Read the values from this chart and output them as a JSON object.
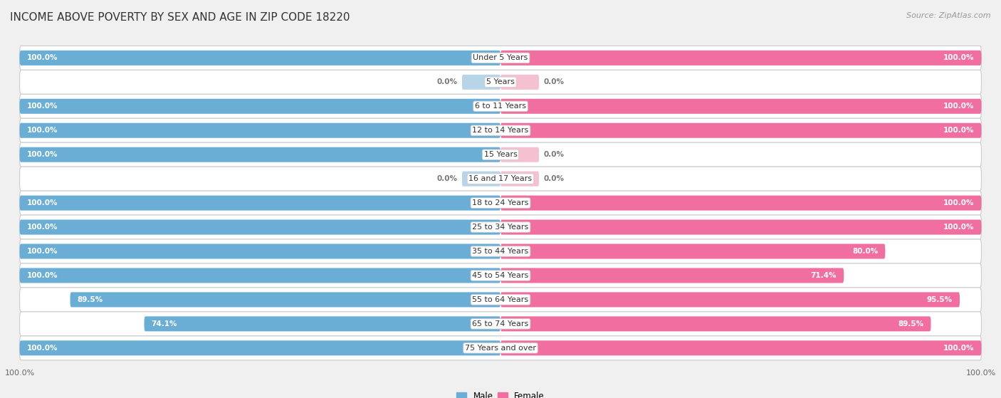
{
  "title": "INCOME ABOVE POVERTY BY SEX AND AGE IN ZIP CODE 18220",
  "source": "Source: ZipAtlas.com",
  "categories": [
    "Under 5 Years",
    "5 Years",
    "6 to 11 Years",
    "12 to 14 Years",
    "15 Years",
    "16 and 17 Years",
    "18 to 24 Years",
    "25 to 34 Years",
    "35 to 44 Years",
    "45 to 54 Years",
    "55 to 64 Years",
    "65 to 74 Years",
    "75 Years and over"
  ],
  "male_values": [
    100.0,
    0.0,
    100.0,
    100.0,
    100.0,
    0.0,
    100.0,
    100.0,
    100.0,
    100.0,
    89.5,
    74.1,
    100.0
  ],
  "female_values": [
    100.0,
    0.0,
    100.0,
    100.0,
    0.0,
    0.0,
    100.0,
    100.0,
    80.0,
    71.4,
    95.5,
    89.5,
    100.0
  ],
  "male_color": "#6aaed6",
  "female_color": "#f06fa0",
  "male_color_zero": "#b8d4e8",
  "female_color_zero": "#f5c0d0",
  "row_bg_color": "#e8e8e8",
  "row_bg_rounded": true,
  "background_color": "#f0f0f0",
  "title_fontsize": 11,
  "label_fontsize": 8,
  "value_fontsize": 7.5,
  "tick_fontsize": 8,
  "source_fontsize": 8
}
